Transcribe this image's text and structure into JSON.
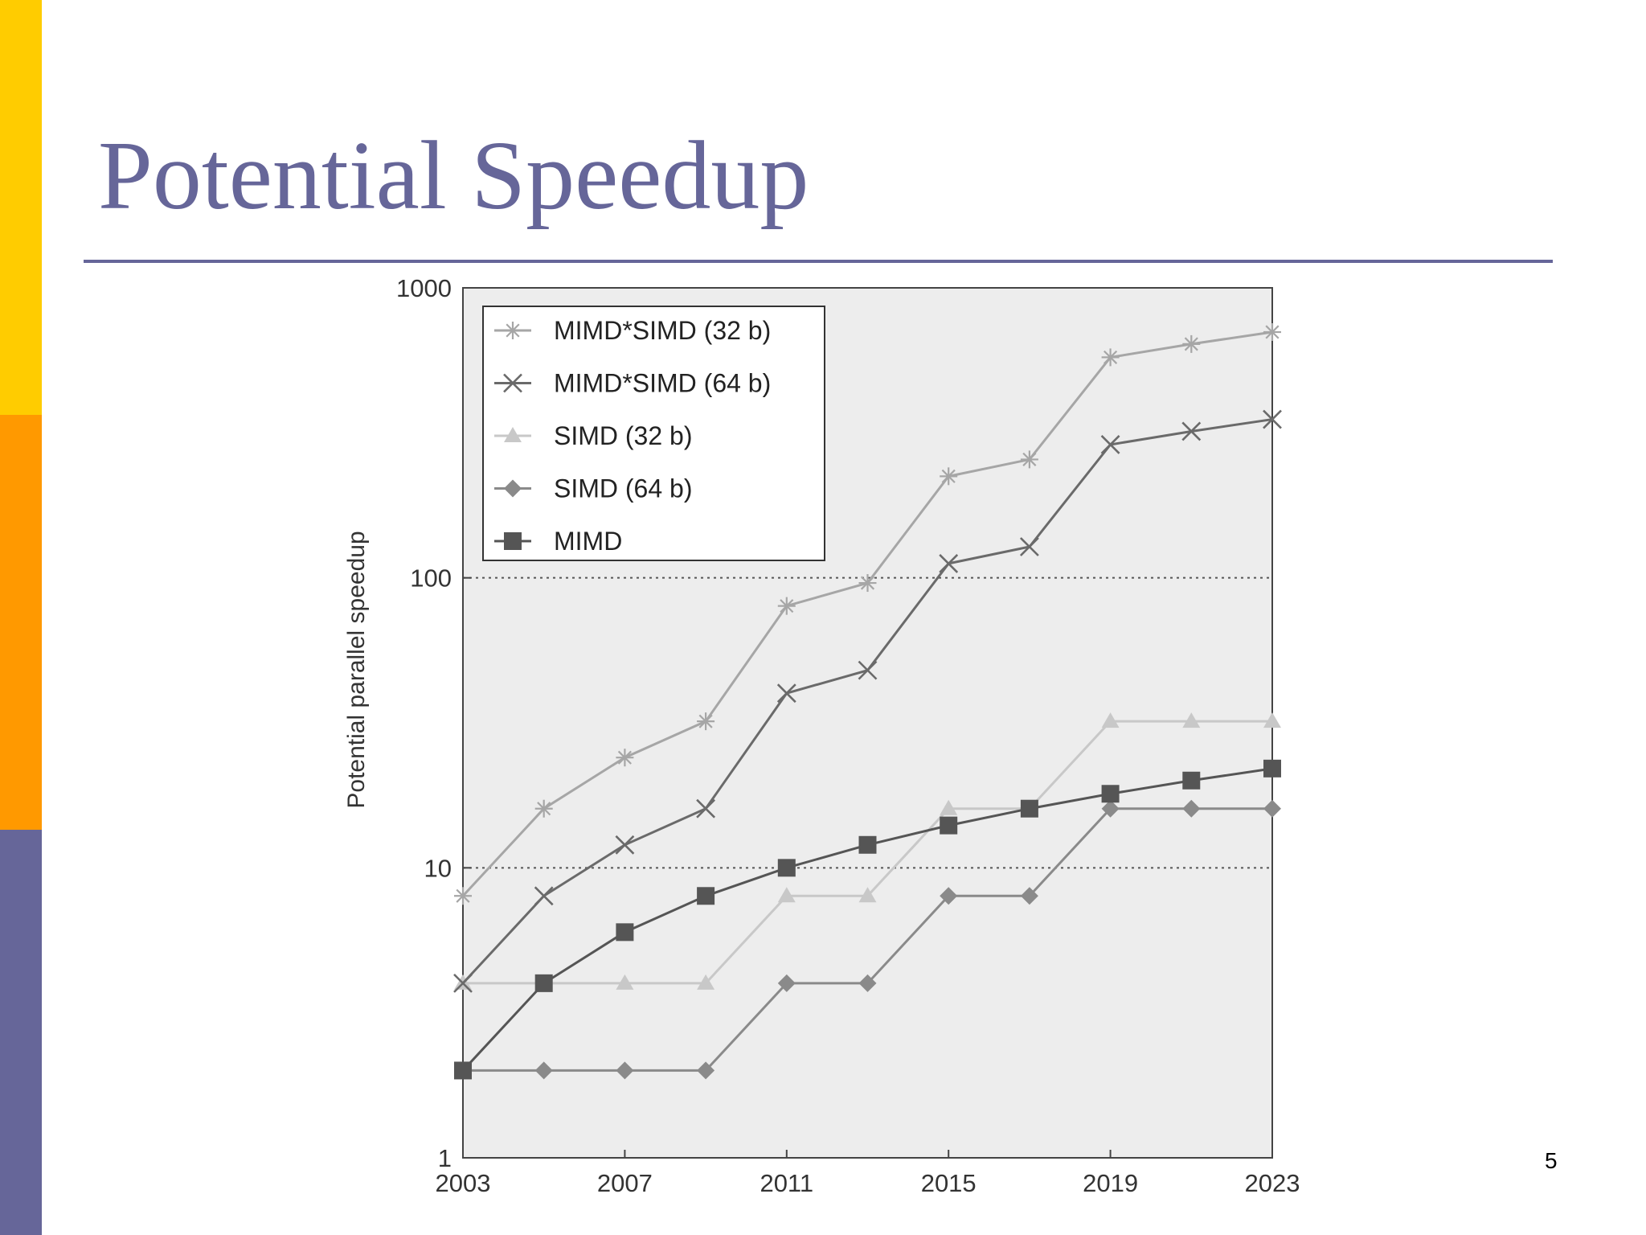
{
  "slide": {
    "title": "Potential Speedup",
    "page_number": "5",
    "colors": {
      "bar_top": "#ffcc00",
      "bar_mid": "#ff9900",
      "bar_bottom": "#666699",
      "title": "#666699"
    }
  },
  "chart_data": {
    "type": "line",
    "title": "",
    "xlabel": "",
    "ylabel": "Potential parallel speedup",
    "yscale": "log",
    "xlim": [
      2003,
      2023
    ],
    "ylim": [
      1,
      1000
    ],
    "x_ticks": [
      "2003",
      "2007",
      "2011",
      "2015",
      "2019",
      "2023"
    ],
    "y_ticks": [
      "1",
      "10",
      "100",
      "1000"
    ],
    "grid": "dotted lines at 10 and 100",
    "legend_position": "top-left",
    "x": [
      2003,
      2005,
      2007,
      2009,
      2011,
      2013,
      2015,
      2017,
      2019,
      2021,
      2023
    ],
    "series": [
      {
        "name": "MIMD*SIMD (32 b)",
        "marker": "asterisk",
        "color": "#a6a6a6",
        "values": [
          8,
          16,
          24,
          32,
          80,
          96,
          224,
          256,
          576,
          640,
          704
        ]
      },
      {
        "name": "MIMD*SIMD (64 b)",
        "marker": "x",
        "color": "#6a6a6a",
        "values": [
          4,
          8,
          12,
          16,
          40,
          48,
          112,
          128,
          288,
          320,
          352
        ]
      },
      {
        "name": "SIMD (32 b)",
        "marker": "triangle",
        "color": "#c8c8c8",
        "values": [
          4,
          4,
          4,
          4,
          8,
          8,
          16,
          16,
          32,
          32,
          32
        ]
      },
      {
        "name": "SIMD (64 b)",
        "marker": "diamond",
        "color": "#8a8a8a",
        "values": [
          2,
          2,
          2,
          2,
          4,
          4,
          8,
          8,
          16,
          16,
          16
        ]
      },
      {
        "name": "MIMD",
        "marker": "square",
        "color": "#555555",
        "values": [
          2,
          4,
          6,
          8,
          10,
          12,
          14,
          16,
          18,
          20,
          22
        ]
      }
    ]
  }
}
